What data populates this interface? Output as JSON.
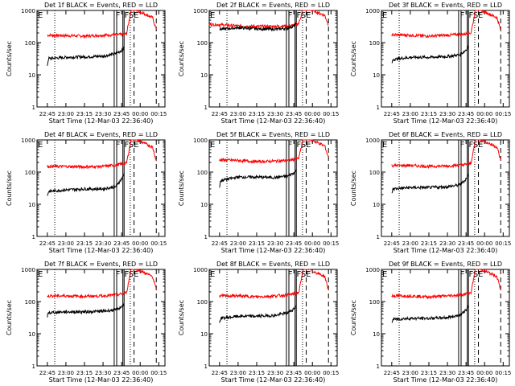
{
  "chart_data": [
    {
      "type": "line",
      "title": "Det 1f BLACK = Events, RED = LLD",
      "xlabel": "Start Time (12-Mar-03 22:36:40)",
      "ylabel": "Counts/sec",
      "xticks": [
        "22:45",
        "23:00",
        "23:15",
        "23:30",
        "23:45",
        "00:00",
        "00:15"
      ],
      "yticks": [
        "1",
        "10",
        "100",
        "1000"
      ],
      "ylog": true,
      "ylim": [
        1,
        1000
      ],
      "xlim": [
        "22:36:40",
        "00:20"
      ],
      "series": [
        {
          "color": "#ff0000",
          "x": [
            "22:45",
            "23:00",
            "23:15",
            "23:30",
            "23:40",
            "23:46",
            "23:49",
            "23:53",
            "00:10",
            "00:13"
          ],
          "y": [
            170,
            165,
            160,
            170,
            175,
            180,
            190,
            1200,
            600,
            250
          ]
        },
        {
          "color": "#000000",
          "x": [
            "22:45",
            "22:46",
            "23:00",
            "23:15",
            "23:30",
            "23:40",
            "23:44",
            "23:46",
            "23:47"
          ],
          "y": [
            20,
            32,
            35,
            36,
            38,
            45,
            55,
            60,
            70
          ]
        }
      ],
      "annotations": [
        "F",
        "F",
        "SE"
      ]
    },
    {
      "type": "line",
      "title": "Det 2f BLACK = Events, RED = LLD",
      "xlabel": "Start Time (12-Mar-03 22:36:40)",
      "ylabel": "Counts/sec",
      "xticks": [
        "22:45",
        "23:00",
        "23:15",
        "23:30",
        "23:45",
        "00:00",
        "00:15"
      ],
      "yticks": [
        "1",
        "10",
        "100",
        "1000"
      ],
      "ylog": true,
      "ylim": [
        1,
        1000
      ],
      "xlim": [
        "22:36:40",
        "00:20"
      ],
      "series": [
        {
          "color": "#ff0000",
          "x": [
            "22:36:40",
            "22:45",
            "23:00",
            "23:15",
            "23:30",
            "23:40",
            "23:46",
            "23:49",
            "23:53",
            "00:10",
            "00:13"
          ],
          "y": [
            370,
            360,
            330,
            320,
            320,
            330,
            350,
            400,
            1300,
            700,
            360
          ]
        },
        {
          "color": "#000000",
          "x": [
            "22:45",
            "23:00",
            "23:15",
            "23:30",
            "23:40",
            "23:45",
            "23:47"
          ],
          "y": [
            260,
            290,
            270,
            260,
            280,
            330,
            380
          ]
        }
      ],
      "annotations": [
        "F",
        "F",
        "SE"
      ]
    },
    {
      "type": "line",
      "title": "Det 3f BLACK = Events, RED = LLD",
      "xlabel": "Start Time (12-Mar-03 22:36:40)",
      "ylabel": "Counts/sec",
      "xticks": [
        "22:45",
        "23:00",
        "23:15",
        "23:30",
        "23:45",
        "00:00",
        "00:15"
      ],
      "yticks": [
        "1",
        "10",
        "100",
        "1000"
      ],
      "ylog": true,
      "ylim": [
        1,
        1000
      ],
      "xlim": [
        "22:36:40",
        "00:20"
      ],
      "series": [
        {
          "color": "#ff0000",
          "x": [
            "22:45",
            "23:00",
            "23:15",
            "23:30",
            "23:40",
            "23:46",
            "23:49",
            "23:53",
            "00:10",
            "00:13"
          ],
          "y": [
            175,
            170,
            160,
            170,
            180,
            190,
            200,
            1200,
            600,
            250
          ]
        },
        {
          "color": "#000000",
          "x": [
            "22:45",
            "22:46",
            "23:00",
            "23:15",
            "23:30",
            "23:40",
            "23:44",
            "23:46",
            "23:47"
          ],
          "y": [
            22,
            30,
            35,
            35,
            37,
            42,
            55,
            65,
            80
          ]
        }
      ],
      "annotations": [
        "F",
        "F",
        "SE"
      ]
    },
    {
      "type": "line",
      "title": "Det 4f BLACK = Events, RED = LLD",
      "xlabel": "Start Time (12-Mar-03 22:36:40)",
      "ylabel": "Counts/sec",
      "xticks": [
        "22:45",
        "23:00",
        "23:15",
        "23:30",
        "23:45",
        "00:00",
        "00:15"
      ],
      "yticks": [
        "1",
        "10",
        "100",
        "1000"
      ],
      "ylog": true,
      "ylim": [
        1,
        1000
      ],
      "xlim": [
        "22:36:40",
        "00:20"
      ],
      "series": [
        {
          "color": "#ff0000",
          "x": [
            "22:45",
            "23:00",
            "23:15",
            "23:30",
            "23:40",
            "23:46",
            "23:49",
            "23:53",
            "00:10",
            "00:13"
          ],
          "y": [
            150,
            150,
            145,
            150,
            165,
            180,
            190,
            1200,
            600,
            220
          ]
        },
        {
          "color": "#000000",
          "x": [
            "22:45",
            "22:46",
            "23:00",
            "23:15",
            "23:30",
            "23:40",
            "23:44",
            "23:46",
            "23:47"
          ],
          "y": [
            18,
            25,
            28,
            30,
            30,
            35,
            55,
            70,
            90
          ]
        }
      ],
      "annotations": [
        "F",
        "F",
        "SE"
      ]
    },
    {
      "type": "line",
      "title": "Det 5f BLACK = Events, RED = LLD",
      "xlabel": "Start Time (12-Mar-03 22:36:40)",
      "ylabel": "Counts/sec",
      "xticks": [
        "22:45",
        "23:00",
        "23:15",
        "23:30",
        "23:45",
        "00:00",
        "00:15"
      ],
      "yticks": [
        "1",
        "10",
        "100",
        "1000"
      ],
      "ylog": true,
      "ylim": [
        1,
        1000
      ],
      "xlim": [
        "22:36:40",
        "00:20"
      ],
      "series": [
        {
          "color": "#ff0000",
          "x": [
            "22:45",
            "23:00",
            "23:15",
            "23:30",
            "23:40",
            "23:46",
            "23:49",
            "23:53",
            "00:10",
            "00:13"
          ],
          "y": [
            240,
            230,
            210,
            220,
            230,
            250,
            270,
            1300,
            650,
            280
          ]
        },
        {
          "color": "#000000",
          "x": [
            "22:45",
            "22:46",
            "23:00",
            "23:15",
            "23:30",
            "23:40",
            "23:44",
            "23:46",
            "23:47"
          ],
          "y": [
            35,
            55,
            70,
            70,
            68,
            75,
            90,
            100,
            120
          ]
        }
      ],
      "annotations": [
        "F",
        "F",
        "SE"
      ]
    },
    {
      "type": "line",
      "title": "Det 6f BLACK = Events, RED = LLD",
      "xlabel": "Start Time (12-Mar-03 22:36:40)",
      "ylabel": "Counts/sec",
      "xticks": [
        "22:45",
        "23:00",
        "23:15",
        "23:30",
        "23:45",
        "00:00",
        "00:15"
      ],
      "yticks": [
        "1",
        "10",
        "100",
        "1000"
      ],
      "ylog": true,
      "ylim": [
        1,
        1000
      ],
      "xlim": [
        "22:36:40",
        "00:20"
      ],
      "series": [
        {
          "color": "#ff0000",
          "x": [
            "22:45",
            "23:00",
            "23:15",
            "23:30",
            "23:40",
            "23:46",
            "23:49",
            "23:53",
            "00:10",
            "00:13"
          ],
          "y": [
            160,
            160,
            150,
            155,
            165,
            175,
            190,
            1200,
            600,
            230
          ]
        },
        {
          "color": "#000000",
          "x": [
            "22:45",
            "22:46",
            "23:00",
            "23:15",
            "23:30",
            "23:40",
            "23:44",
            "23:46",
            "23:47"
          ],
          "y": [
            22,
            30,
            33,
            33,
            35,
            40,
            55,
            70,
            85
          ]
        }
      ],
      "annotations": [
        "F",
        "F",
        "SE"
      ]
    },
    {
      "type": "line",
      "title": "Det 7f BLACK = Events, RED = LLD",
      "xlabel": "Start Time (12-Mar-03 22:36:40)",
      "ylabel": "Counts/sec",
      "xticks": [
        "22:45",
        "23:00",
        "23:15",
        "23:30",
        "23:45",
        "00:00",
        "00:15"
      ],
      "yticks": [
        "1",
        "10",
        "100",
        "1000"
      ],
      "ylog": true,
      "ylim": [
        1,
        1000
      ],
      "xlim": [
        "22:36:40",
        "00:20"
      ],
      "series": [
        {
          "color": "#ff0000",
          "x": [
            "22:45",
            "23:00",
            "23:15",
            "23:30",
            "23:40",
            "23:46",
            "23:49",
            "23:53",
            "00:10",
            "00:13"
          ],
          "y": [
            150,
            150,
            145,
            150,
            160,
            175,
            190,
            1200,
            600,
            230
          ]
        },
        {
          "color": "#000000",
          "x": [
            "22:45",
            "22:46",
            "23:00",
            "23:15",
            "23:30",
            "23:40",
            "23:44",
            "23:46",
            "23:47"
          ],
          "y": [
            35,
            45,
            48,
            48,
            50,
            55,
            65,
            75,
            85
          ]
        }
      ],
      "annotations": [
        "F",
        "F",
        "SE"
      ]
    },
    {
      "type": "line",
      "title": "Det 8f BLACK = Events, RED = LLD",
      "xlabel": "Start Time (12-Mar-03 22:36:40)",
      "ylabel": "Counts/sec",
      "xticks": [
        "22:45",
        "23:00",
        "23:15",
        "23:30",
        "23:45",
        "00:00",
        "00:15"
      ],
      "yticks": [
        "1",
        "10",
        "100",
        "1000"
      ],
      "ylog": true,
      "ylim": [
        1,
        1000
      ],
      "xlim": [
        "22:36:40",
        "00:20"
      ],
      "series": [
        {
          "color": "#ff0000",
          "x": [
            "22:45",
            "23:00",
            "23:15",
            "23:30",
            "23:40",
            "23:46",
            "23:49",
            "23:53",
            "00:10",
            "00:13"
          ],
          "y": [
            150,
            150,
            140,
            150,
            160,
            175,
            190,
            1200,
            600,
            230
          ]
        },
        {
          "color": "#000000",
          "x": [
            "22:45",
            "22:46",
            "23:00",
            "23:15",
            "23:30",
            "23:40",
            "23:44",
            "23:46",
            "23:47"
          ],
          "y": [
            22,
            30,
            35,
            35,
            37,
            45,
            55,
            65,
            75
          ]
        }
      ],
      "annotations": [
        "F",
        "F",
        "SE"
      ]
    },
    {
      "type": "line",
      "title": "Det 9f BLACK = Events, RED = LLD",
      "xlabel": "Start Time (12-Mar-03 22:36:40)",
      "ylabel": "Counts/sec",
      "xticks": [
        "22:45",
        "23:00",
        "23:15",
        "23:30",
        "23:45",
        "00:00",
        "00:15"
      ],
      "yticks": [
        "1",
        "10",
        "100",
        "1000"
      ],
      "ylog": true,
      "ylim": [
        1,
        1000
      ],
      "xlim": [
        "22:36:40",
        "00:20"
      ],
      "series": [
        {
          "color": "#ff0000",
          "x": [
            "22:45",
            "23:00",
            "23:15",
            "23:30",
            "23:40",
            "23:46",
            "23:49",
            "23:53",
            "00:10",
            "00:13"
          ],
          "y": [
            150,
            150,
            140,
            150,
            160,
            175,
            190,
            1200,
            600,
            230
          ]
        },
        {
          "color": "#000000",
          "x": [
            "22:45",
            "22:46",
            "23:00",
            "23:15",
            "23:30",
            "23:40",
            "23:44",
            "23:46",
            "23:47"
          ],
          "y": [
            22,
            28,
            30,
            30,
            32,
            38,
            50,
            60,
            75
          ]
        }
      ],
      "annotations": [
        "F",
        "F",
        "SE"
      ]
    }
  ],
  "markers": {
    "solid": [
      "23:39",
      "23:41",
      "23:46",
      "23:47"
    ],
    "dotted": [
      "22:51",
      "23:52"
    ],
    "dashed": [
      "23:55",
      "00:13"
    ],
    "ann_x": [
      "23:39:30",
      "23:46:30",
      "23:50"
    ]
  }
}
